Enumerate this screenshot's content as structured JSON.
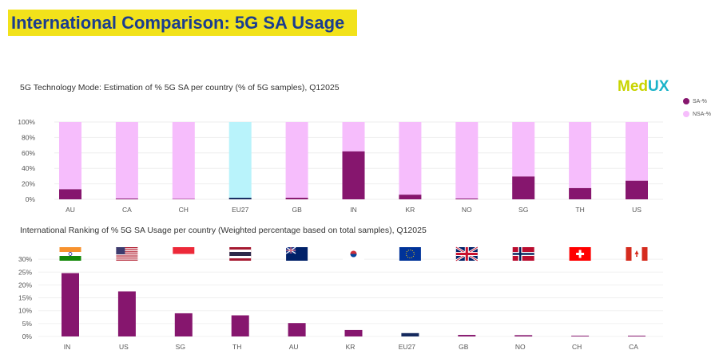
{
  "page_title": "International Comparison: 5G SA Usage",
  "logo": "MedUX",
  "colors": {
    "sa": "#86166e",
    "nsa": "#f6bdfc",
    "eu_sa": "#152a5e",
    "eu_nsa": "#b9f3fb",
    "banner": "#f2e21a",
    "title": "#1b3d8f"
  },
  "chart_data": [
    {
      "type": "bar",
      "stacked": true,
      "title": "5G Technology Mode: Estimation of % 5G SA per country (% of 5G samples), Q12025",
      "categories": [
        "AU",
        "CA",
        "CH",
        "EU27",
        "GB",
        "IN",
        "KR",
        "NO",
        "SG",
        "TH",
        "US"
      ],
      "series": [
        {
          "name": "SA-%",
          "values": [
            13,
            1,
            0.5,
            2,
            2,
            62,
            6,
            1,
            29.5,
            14.5,
            24
          ]
        },
        {
          "name": "NSA-%",
          "values": [
            87,
            99,
            99.5,
            98,
            98,
            38,
            94,
            99,
            70.5,
            85.5,
            76
          ]
        }
      ],
      "yticks": [
        "0%",
        "20%",
        "40%",
        "60%",
        "80%",
        "100%"
      ],
      "ylim": [
        0,
        100
      ],
      "grid": true,
      "legend": "right"
    },
    {
      "type": "bar",
      "title": "International Ranking of % 5G SA Usage per country (Weighted percentage based on total samples), Q12025",
      "categories": [
        "IN",
        "US",
        "SG",
        "TH",
        "AU",
        "KR",
        "EU27",
        "GB",
        "NO",
        "CH",
        "CA"
      ],
      "values": [
        24.6,
        17.5,
        9,
        8.2,
        5.2,
        2.5,
        1.3,
        0.6,
        0.5,
        0.3,
        0.3
      ],
      "flags": [
        "india-flag",
        "usa-flag",
        "singapore-flag",
        "thailand-flag",
        "australia-flag",
        "south-korea-flag",
        "eu-flag",
        "uk-flag",
        "norway-flag",
        "switzerland-flag",
        "canada-flag"
      ],
      "yticks": [
        "0%",
        "5%",
        "10%",
        "15%",
        "20%",
        "25%",
        "30%"
      ],
      "ylim": [
        0,
        30
      ],
      "grid": true
    }
  ]
}
